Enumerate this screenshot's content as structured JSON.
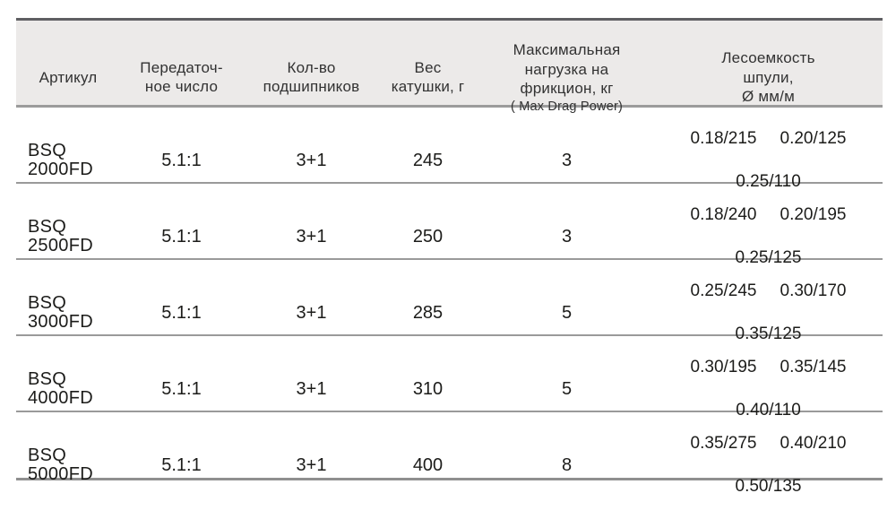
{
  "colors": {
    "header_background": "#eceae9",
    "border_top": "#5f5f62",
    "row_separator": "#9a9a9a",
    "text": "#1c1c1a"
  },
  "table": {
    "header": {
      "article": "Артикул",
      "gear_ratio": "Передаточ-\nное число",
      "bearings": "Кол-во\nподшипников",
      "weight": "Вес\nкатушки, г",
      "max_drag": "Максимальная\nнагрузка на\nфрикцион, кг",
      "max_drag_sub": "( Max Drag Power)",
      "line_capacity": "Лесоемкость\nшпули,\nØ мм/м"
    },
    "rows": [
      {
        "article": "BSQ\n2000FD",
        "gear_ratio": "5.1:1",
        "bearings": "3+1",
        "weight": "245",
        "max_drag": "3",
        "capacity": [
          "0.18/215",
          "0.20/125",
          "0.25/110"
        ]
      },
      {
        "article": "BSQ\n2500FD",
        "gear_ratio": "5.1:1",
        "bearings": "3+1",
        "weight": "250",
        "max_drag": "3",
        "capacity": [
          "0.18/240",
          "0.20/195",
          "0.25/125"
        ]
      },
      {
        "article": "BSQ\n3000FD",
        "gear_ratio": "5.1:1",
        "bearings": "3+1",
        "weight": "285",
        "max_drag": "5",
        "capacity": [
          "0.25/245",
          "0.30/170",
          "0.35/125"
        ]
      },
      {
        "article": "BSQ\n4000FD",
        "gear_ratio": "5.1:1",
        "bearings": "3+1",
        "weight": "310",
        "max_drag": "5",
        "capacity": [
          "0.30/195",
          "0.35/145",
          "0.40/110"
        ]
      },
      {
        "article": "BSQ\n5000FD",
        "gear_ratio": "5.1:1",
        "bearings": "3+1",
        "weight": "400",
        "max_drag": "8",
        "capacity": [
          "0.35/275",
          "0.40/210",
          "0.50/135"
        ]
      }
    ]
  }
}
